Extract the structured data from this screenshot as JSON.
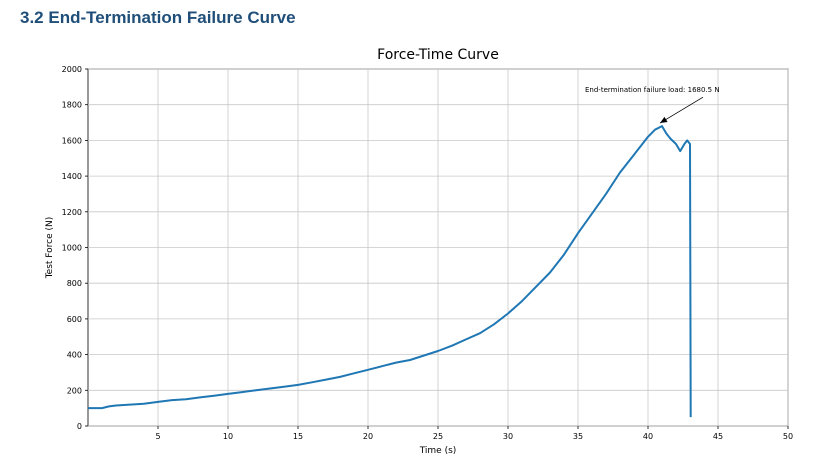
{
  "section": {
    "heading": "3.2 End-Termination Failure Curve"
  },
  "chart_data": {
    "type": "line",
    "title": "Force-Time Curve",
    "xlabel": "Time (s)",
    "ylabel": "Test Force (N)",
    "xlim": [
      0,
      50
    ],
    "ylim": [
      0,
      2000
    ],
    "xticks": [
      5,
      10,
      15,
      20,
      25,
      30,
      35,
      40,
      45,
      50
    ],
    "yticks": [
      0,
      200,
      400,
      600,
      800,
      1000,
      1200,
      1400,
      1600,
      1800,
      2000
    ],
    "grid": true,
    "line_color": "#1f77b4",
    "series": [
      {
        "x": [
          0,
          1,
          1.5,
          2,
          3,
          4,
          5,
          6,
          7,
          8,
          9,
          10,
          11,
          12,
          13,
          14,
          15,
          16,
          17,
          18,
          19,
          20,
          21,
          22,
          23,
          24,
          25,
          26,
          27,
          28,
          29,
          30,
          31,
          32,
          33,
          34,
          35,
          36,
          37,
          38,
          39,
          39.5,
          40,
          40.5,
          41,
          41.3,
          41.6,
          42,
          42.3,
          42.6,
          42.8,
          43,
          43.05
        ],
        "y": [
          100,
          100,
          110,
          115,
          120,
          125,
          135,
          145,
          150,
          160,
          170,
          180,
          190,
          200,
          210,
          220,
          230,
          245,
          260,
          275,
          295,
          315,
          335,
          355,
          370,
          395,
          420,
          450,
          485,
          520,
          570,
          630,
          700,
          780,
          860,
          960,
          1080,
          1190,
          1300,
          1420,
          1520,
          1570,
          1620,
          1660,
          1680,
          1640,
          1610,
          1580,
          1540,
          1580,
          1600,
          1580,
          50
        ]
      }
    ],
    "annotation": {
      "text": "End-termination failure load: 1680.5 N",
      "x": 41,
      "y": 1680.5,
      "text_x": 35.5,
      "text_y": 1870
    }
  }
}
